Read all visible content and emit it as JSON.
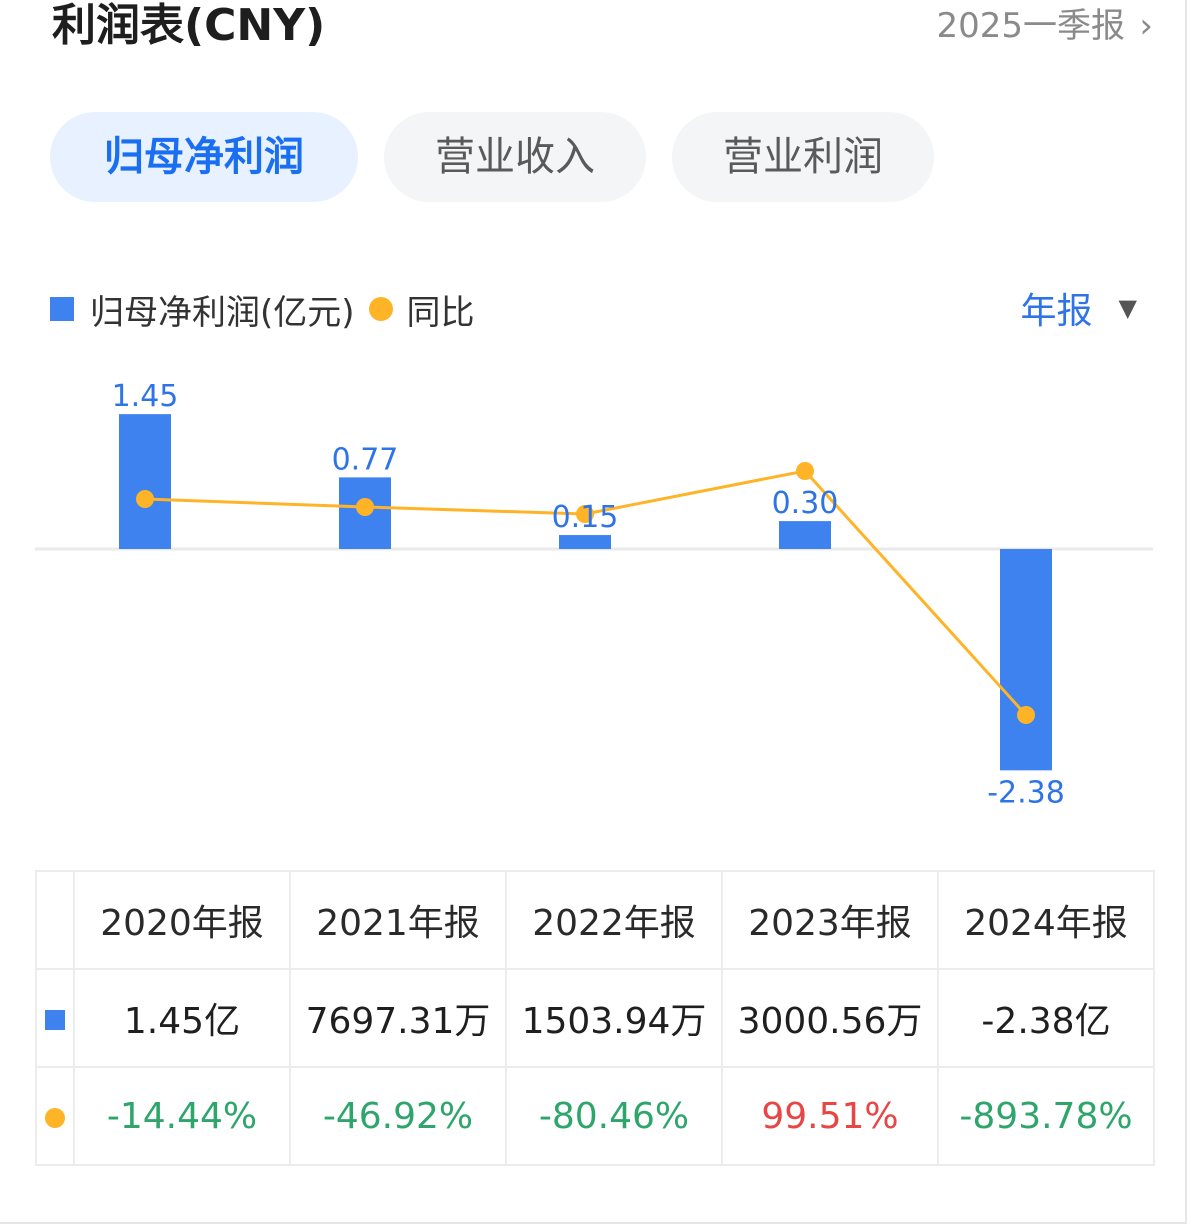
{
  "header": {
    "title": "利润表(CNY)",
    "period": "2025一季报",
    "chevron": "›"
  },
  "tabs": [
    {
      "label": "归母净利润",
      "active": true
    },
    {
      "label": "营业收入",
      "active": false
    },
    {
      "label": "营业利润",
      "active": false
    }
  ],
  "legend": {
    "bar_label": "归母净利润(亿元)",
    "line_label": "同比"
  },
  "selector": {
    "label": "年报",
    "arrow": "▼"
  },
  "colors": {
    "bar": "#3d82ef",
    "line": "#ffb326",
    "negative": "#2ea56a",
    "positive": "#e84545",
    "accent": "#1a6ef2"
  },
  "chart_data": {
    "type": "bar",
    "categories": [
      "2020年报",
      "2021年报",
      "2022年报",
      "2023年报",
      "2024年报"
    ],
    "series": [
      {
        "name": "归母净利润(亿元)",
        "type": "bar",
        "values": [
          1.45,
          0.77,
          0.15,
          0.3,
          -2.38
        ],
        "labels": [
          "1.45",
          "0.77",
          "0.15",
          "0.30",
          "-2.38"
        ]
      },
      {
        "name": "同比",
        "type": "line",
        "values": [
          -14.44,
          -46.92,
          -80.46,
          99.51,
          -893.78
        ]
      }
    ]
  },
  "table": {
    "headers": [
      "2020年报",
      "2021年报",
      "2022年报",
      "2023年报",
      "2024年报"
    ],
    "profit_row": [
      "1.45亿",
      "7697.31万",
      "1503.94万",
      "3000.56万",
      "-2.38亿"
    ],
    "yoy_row": [
      "-14.44%",
      "-46.92%",
      "-80.46%",
      "99.51%",
      "-893.78%"
    ]
  }
}
